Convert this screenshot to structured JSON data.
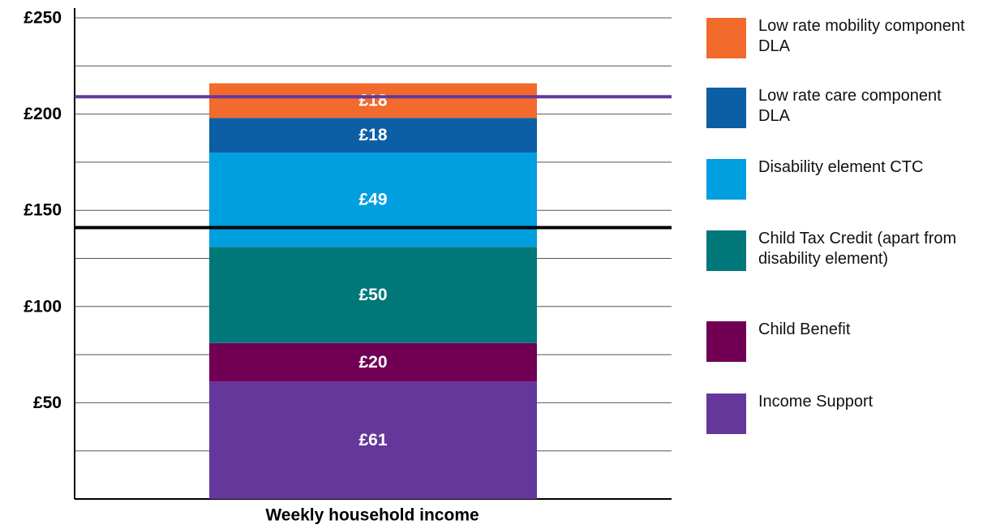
{
  "chart_data": {
    "type": "stacked_bar",
    "x_label": "Weekly household income",
    "categories": [
      null
    ],
    "ylim": [
      0,
      250
    ],
    "yticks": [
      {
        "value": 50,
        "label": "£50"
      },
      {
        "value": 100,
        "label": "£100"
      },
      {
        "value": 150,
        "label": "£150"
      },
      {
        "value": 200,
        "label": "£200"
      },
      {
        "value": 250,
        "label": "£250"
      }
    ],
    "minor_yticks": [
      25,
      75,
      125,
      175,
      225
    ],
    "grid": true,
    "legend": "right",
    "series": [
      {
        "name": "Income Support",
        "color": "#65379b",
        "values": [
          61
        ],
        "value_labels": [
          "£61"
        ]
      },
      {
        "name": "Child Benefit",
        "color": "#710055",
        "values": [
          20
        ],
        "value_labels": [
          "£20"
        ]
      },
      {
        "name": "Child Tax Credit (apart from disability element)",
        "color": "#00787a",
        "values": [
          50
        ],
        "value_labels": [
          "£50"
        ]
      },
      {
        "name": "Disability element CTC",
        "color": "#009fe0",
        "values": [
          49
        ],
        "value_labels": [
          "£49"
        ]
      },
      {
        "name": "Low rate care component DLA",
        "color": "#0c5fa4",
        "values": [
          18
        ],
        "value_labels": [
          "£18"
        ]
      },
      {
        "name": "Low rate mobility component DLA",
        "color": "#f26a2c",
        "values": [
          18
        ],
        "value_labels": [
          "£18"
        ]
      }
    ],
    "reference_lines": [
      {
        "value": 209,
        "color": "#65379b"
      },
      {
        "value": 141,
        "color": "#000000"
      }
    ]
  }
}
